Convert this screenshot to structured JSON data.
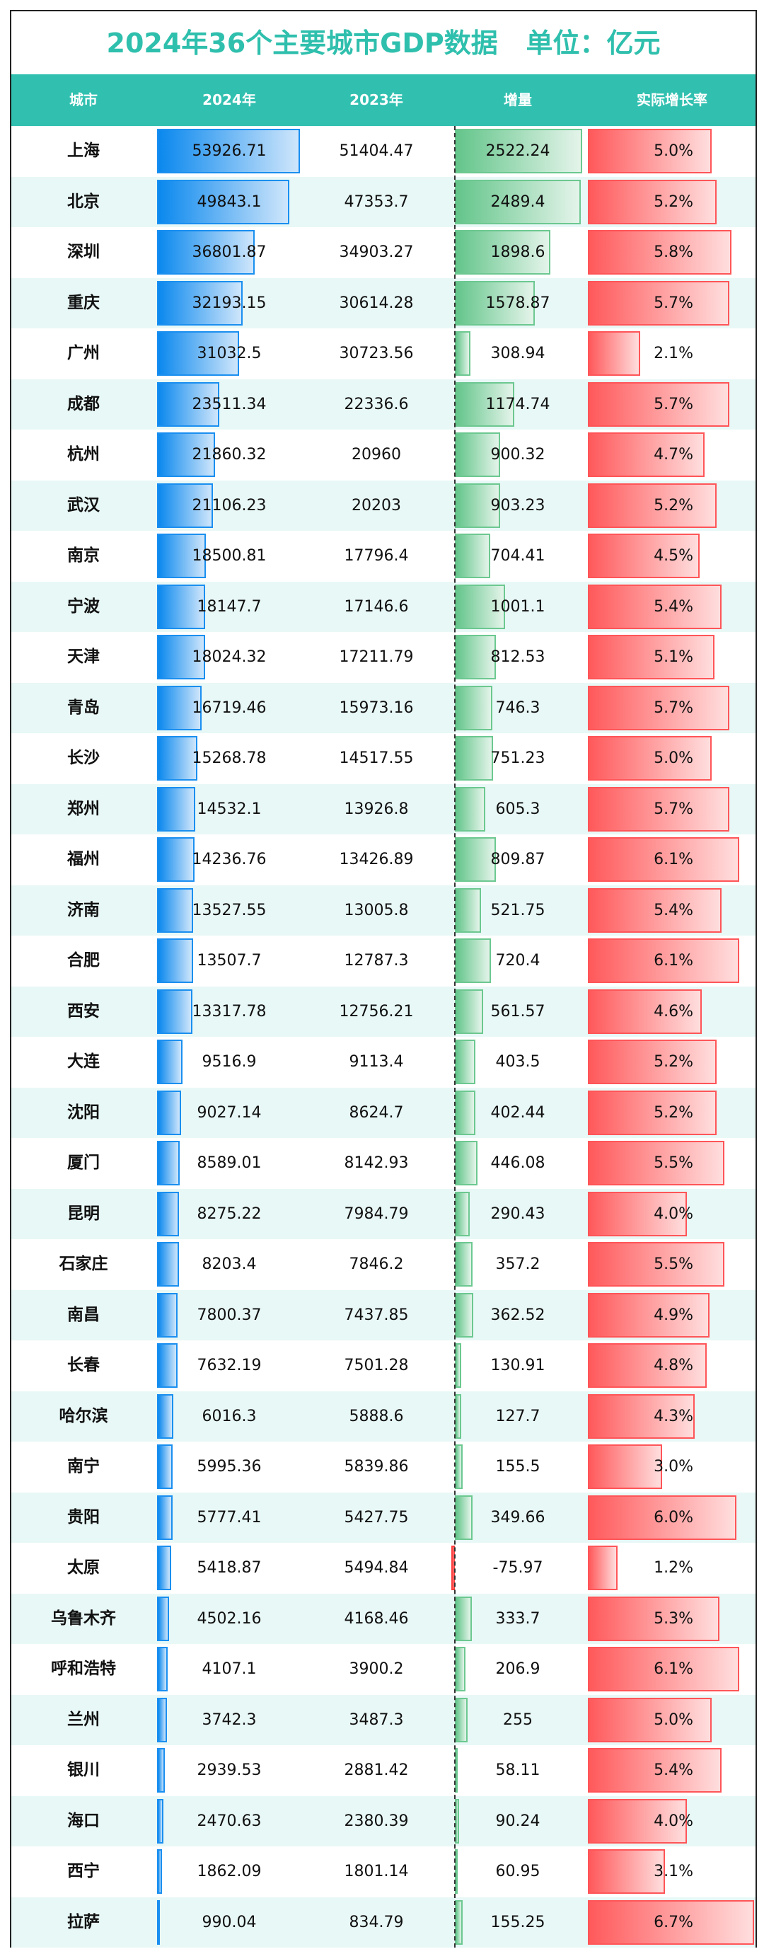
{
  "chart_data": {
    "type": "table",
    "title": "2024年36个主要城市GDP数据   单位：亿元",
    "columns": [
      "城市",
      "2024年",
      "2023年",
      "增量",
      "实际增长率"
    ],
    "colors": {
      "header": "#31c0b0",
      "title": "#2fbfad",
      "gdp_bar": "#0a88ee",
      "increment_bar": "#63c58a",
      "growth_bar": "#ff595b",
      "negative_bar": "#ff3b3b",
      "alt_row": "#e8f8f6"
    },
    "rows": [
      [
        "上海",
        "53926.71",
        "51404.47",
        "2522.24",
        "5.0%"
      ],
      [
        "北京",
        "49843.1",
        "47353.7",
        "2489.4",
        "5.2%"
      ],
      [
        "深圳",
        "36801.87",
        "34903.27",
        "1898.6",
        "5.8%"
      ],
      [
        "重庆",
        "32193.15",
        "30614.28",
        "1578.87",
        "5.7%"
      ],
      [
        "广州",
        "31032.5",
        "30723.56",
        "308.94",
        "2.1%"
      ],
      [
        "成都",
        "23511.34",
        "22336.6",
        "1174.74",
        "5.7%"
      ],
      [
        "杭州",
        "21860.32",
        "20960",
        "900.32",
        "4.7%"
      ],
      [
        "武汉",
        "21106.23",
        "20203",
        "903.23",
        "5.2%"
      ],
      [
        "南京",
        "18500.81",
        "17796.4",
        "704.41",
        "4.5%"
      ],
      [
        "宁波",
        "18147.7",
        "17146.6",
        "1001.1",
        "5.4%"
      ],
      [
        "天津",
        "18024.32",
        "17211.79",
        "812.53",
        "5.1%"
      ],
      [
        "青岛",
        "16719.46",
        "15973.16",
        "746.3",
        "5.7%"
      ],
      [
        "长沙",
        "15268.78",
        "14517.55",
        "751.23",
        "5.0%"
      ],
      [
        "郑州",
        "14532.1",
        "13926.8",
        "605.3",
        "5.7%"
      ],
      [
        "福州",
        "14236.76",
        "13426.89",
        "809.87",
        "6.1%"
      ],
      [
        "济南",
        "13527.55",
        "13005.8",
        "521.75",
        "5.4%"
      ],
      [
        "合肥",
        "13507.7",
        "12787.3",
        "720.4",
        "6.1%"
      ],
      [
        "西安",
        "13317.78",
        "12756.21",
        "561.57",
        "4.6%"
      ],
      [
        "大连",
        "9516.9",
        "9113.4",
        "403.5",
        "5.2%"
      ],
      [
        "沈阳",
        "9027.14",
        "8624.7",
        "402.44",
        "5.2%"
      ],
      [
        "厦门",
        "8589.01",
        "8142.93",
        "446.08",
        "5.5%"
      ],
      [
        "昆明",
        "8275.22",
        "7984.79",
        "290.43",
        "4.0%"
      ],
      [
        "石家庄",
        "8203.4",
        "7846.2",
        "357.2",
        "5.5%"
      ],
      [
        "南昌",
        "7800.37",
        "7437.85",
        "362.52",
        "4.9%"
      ],
      [
        "长春",
        "7632.19",
        "7501.28",
        "130.91",
        "4.8%"
      ],
      [
        "哈尔滨",
        "6016.3",
        "5888.6",
        "127.7",
        "4.3%"
      ],
      [
        "南宁",
        "5995.36",
        "5839.86",
        "155.5",
        "3.0%"
      ],
      [
        "贵阳",
        "5777.41",
        "5427.75",
        "349.66",
        "6.0%"
      ],
      [
        "太原",
        "5418.87",
        "5494.84",
        "-75.97",
        "1.2%"
      ],
      [
        "乌鲁木齐",
        "4502.16",
        "4168.46",
        "333.7",
        "5.3%"
      ],
      [
        "呼和浩特",
        "4107.1",
        "3900.2",
        "206.9",
        "6.1%"
      ],
      [
        "兰州",
        "3742.3",
        "3487.3",
        "255",
        "5.0%"
      ],
      [
        "银川",
        "2939.53",
        "2881.42",
        "58.11",
        "5.4%"
      ],
      [
        "海口",
        "2470.63",
        "2380.39",
        "90.24",
        "4.0%"
      ],
      [
        "西宁",
        "1862.09",
        "1801.14",
        "60.95",
        "3.1%"
      ],
      [
        "拉萨",
        "990.04",
        "834.79",
        "155.25",
        "6.7%"
      ]
    ]
  }
}
